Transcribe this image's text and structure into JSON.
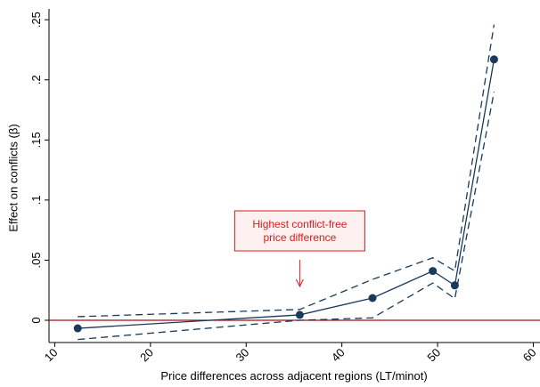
{
  "chart_data": {
    "type": "line",
    "xlabel": "Price differences across adjacent regions (LT/minot)",
    "ylabel": "Effect on conflicts (β)",
    "x": [
      12.4,
      35.6,
      43.2,
      49.5,
      51.8,
      55.9
    ],
    "values": [
      -0.0067,
      0.0045,
      0.0185,
      0.041,
      0.029,
      0.217
    ],
    "upper": [
      0.003,
      0.009,
      0.034,
      0.052,
      0.041,
      0.246
    ],
    "lower": [
      -0.016,
      0.0,
      0.002,
      0.031,
      0.018,
      0.19
    ],
    "color": "#1a3a5c",
    "hline": 0,
    "hline_color": "#a50f15",
    "annotation": {
      "lines": [
        "Highest conflict-free",
        "price difference"
      ],
      "x": 35.6,
      "color": "#e41a1c"
    },
    "xlim": [
      9.4,
      60.7
    ],
    "xticks": [
      10,
      20,
      30,
      40,
      50,
      60
    ],
    "ylim": [
      -0.0185,
      0.259
    ],
    "yticks": [
      {
        "value": 0,
        "label": "0"
      },
      {
        "value": 0.05,
        "label": ".05"
      },
      {
        "value": 0.1,
        "label": ".1"
      },
      {
        "value": 0.15,
        "label": ".15"
      },
      {
        "value": 0.2,
        "label": ".2"
      },
      {
        "value": 0.25,
        "label": ".25"
      }
    ],
    "grid": false
  }
}
